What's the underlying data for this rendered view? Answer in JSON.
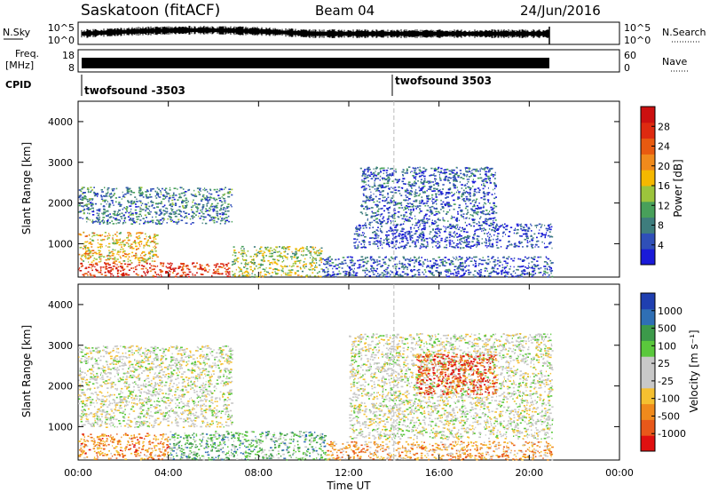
{
  "header": {
    "station": "Saskatoon (fitACF)",
    "beam": "Beam 04",
    "date": "24/Jun/2016"
  },
  "top_panels": {
    "nsky_label": "N.Sky",
    "nsky_ticks": [
      "10^5",
      "10^0"
    ],
    "nsky_right_ticks": [
      "10^5",
      "10^0"
    ],
    "nsearch_label": "N.Search",
    "freq_label_1": "Freq.",
    "freq_label_2": "[MHz]",
    "freq_ticks": [
      "18",
      "8"
    ],
    "nave_ticks": [
      "60",
      "0"
    ],
    "nave_label": "Nave",
    "cpid_label": "CPID",
    "cpid_segments": [
      {
        "name": "twofsound -3503",
        "start_hour": 0,
        "end_hour": 14
      },
      {
        "name": "twofsound 3503",
        "start_hour": 14,
        "end_hour": 21
      }
    ]
  },
  "power_colorbar": {
    "label": "Power [dB]",
    "ticks": [
      "4",
      "8",
      "12",
      "16",
      "20",
      "24",
      "28"
    ],
    "colors": [
      "#1a1ad8",
      "#2f4fb8",
      "#3e7d7d",
      "#48a05a",
      "#9cc43c",
      "#f5b800",
      "#f08a1c",
      "#e85a10",
      "#de2a10",
      "#cc1010"
    ]
  },
  "velocity_colorbar": {
    "label": "Velocity [m s⁻¹]",
    "ticks": [
      "-1000",
      "-500",
      "-100",
      "-25",
      "25",
      "100",
      "500",
      "1000"
    ],
    "colors": [
      "#e01010",
      "#e8581a",
      "#f08a1c",
      "#f5c030",
      "#c8c8c8",
      "#c8c8c8",
      "#5ac83c",
      "#3c9a4a",
      "#2f6fb5",
      "#1f3fb0"
    ]
  },
  "chart_data": [
    {
      "type": "heatmap",
      "title": "Power",
      "xlabel": "Time UT",
      "ylabel": "Slant Range [km]",
      "xlim": [
        0,
        24
      ],
      "ylim": [
        180,
        4500
      ],
      "x_ticks": [
        "00:00",
        "04:00",
        "08:00",
        "12:00",
        "16:00",
        "20:00",
        "00:00"
      ],
      "y_ticks": [
        "1000",
        "2000",
        "3000",
        "4000"
      ],
      "regions": [
        {
          "t0": 0.0,
          "t1": 6.8,
          "r0": 200,
          "r1": 550,
          "level": 0.85
        },
        {
          "t0": 0.0,
          "t1": 3.5,
          "r0": 550,
          "r1": 1300,
          "level": 0.55
        },
        {
          "t0": 0.0,
          "t1": 6.8,
          "r0": 1500,
          "r1": 2400,
          "level": 0.25
        },
        {
          "t0": 6.8,
          "t1": 10.8,
          "r0": 200,
          "r1": 950,
          "level": 0.45
        },
        {
          "t0": 10.8,
          "t1": 21.0,
          "r0": 200,
          "r1": 700,
          "level": 0.15
        },
        {
          "t0": 12.2,
          "t1": 21.0,
          "r0": 900,
          "r1": 1500,
          "level": 0.12
        },
        {
          "t0": 12.5,
          "t1": 18.5,
          "r0": 1500,
          "r1": 2900,
          "level": 0.18
        }
      ]
    },
    {
      "type": "heatmap",
      "title": "Velocity",
      "xlabel": "Time UT",
      "ylabel": "Slant Range [km]",
      "xlim": [
        0,
        24
      ],
      "ylim": [
        180,
        4500
      ],
      "x_ticks": [
        "00:00",
        "04:00",
        "08:00",
        "12:00",
        "16:00",
        "20:00",
        "00:00"
      ],
      "y_ticks": [
        "1000",
        "2000",
        "3000",
        "4000"
      ],
      "regions": [
        {
          "t0": 0.0,
          "t1": 4.0,
          "r0": 200,
          "r1": 850,
          "level": 0.25
        },
        {
          "t0": 0.0,
          "t1": 6.8,
          "r0": 1000,
          "r1": 3000,
          "level": 0.5
        },
        {
          "t0": 4.0,
          "t1": 11.0,
          "r0": 200,
          "r1": 900,
          "level": 0.68
        },
        {
          "t0": 11.0,
          "t1": 21.0,
          "r0": 200,
          "r1": 650,
          "level": 0.3
        },
        {
          "t0": 12.0,
          "t1": 21.0,
          "r0": 700,
          "r1": 3300,
          "level": 0.5
        },
        {
          "t0": 15.0,
          "t1": 18.5,
          "r0": 1800,
          "r1": 2800,
          "level": 0.12
        }
      ]
    }
  ]
}
